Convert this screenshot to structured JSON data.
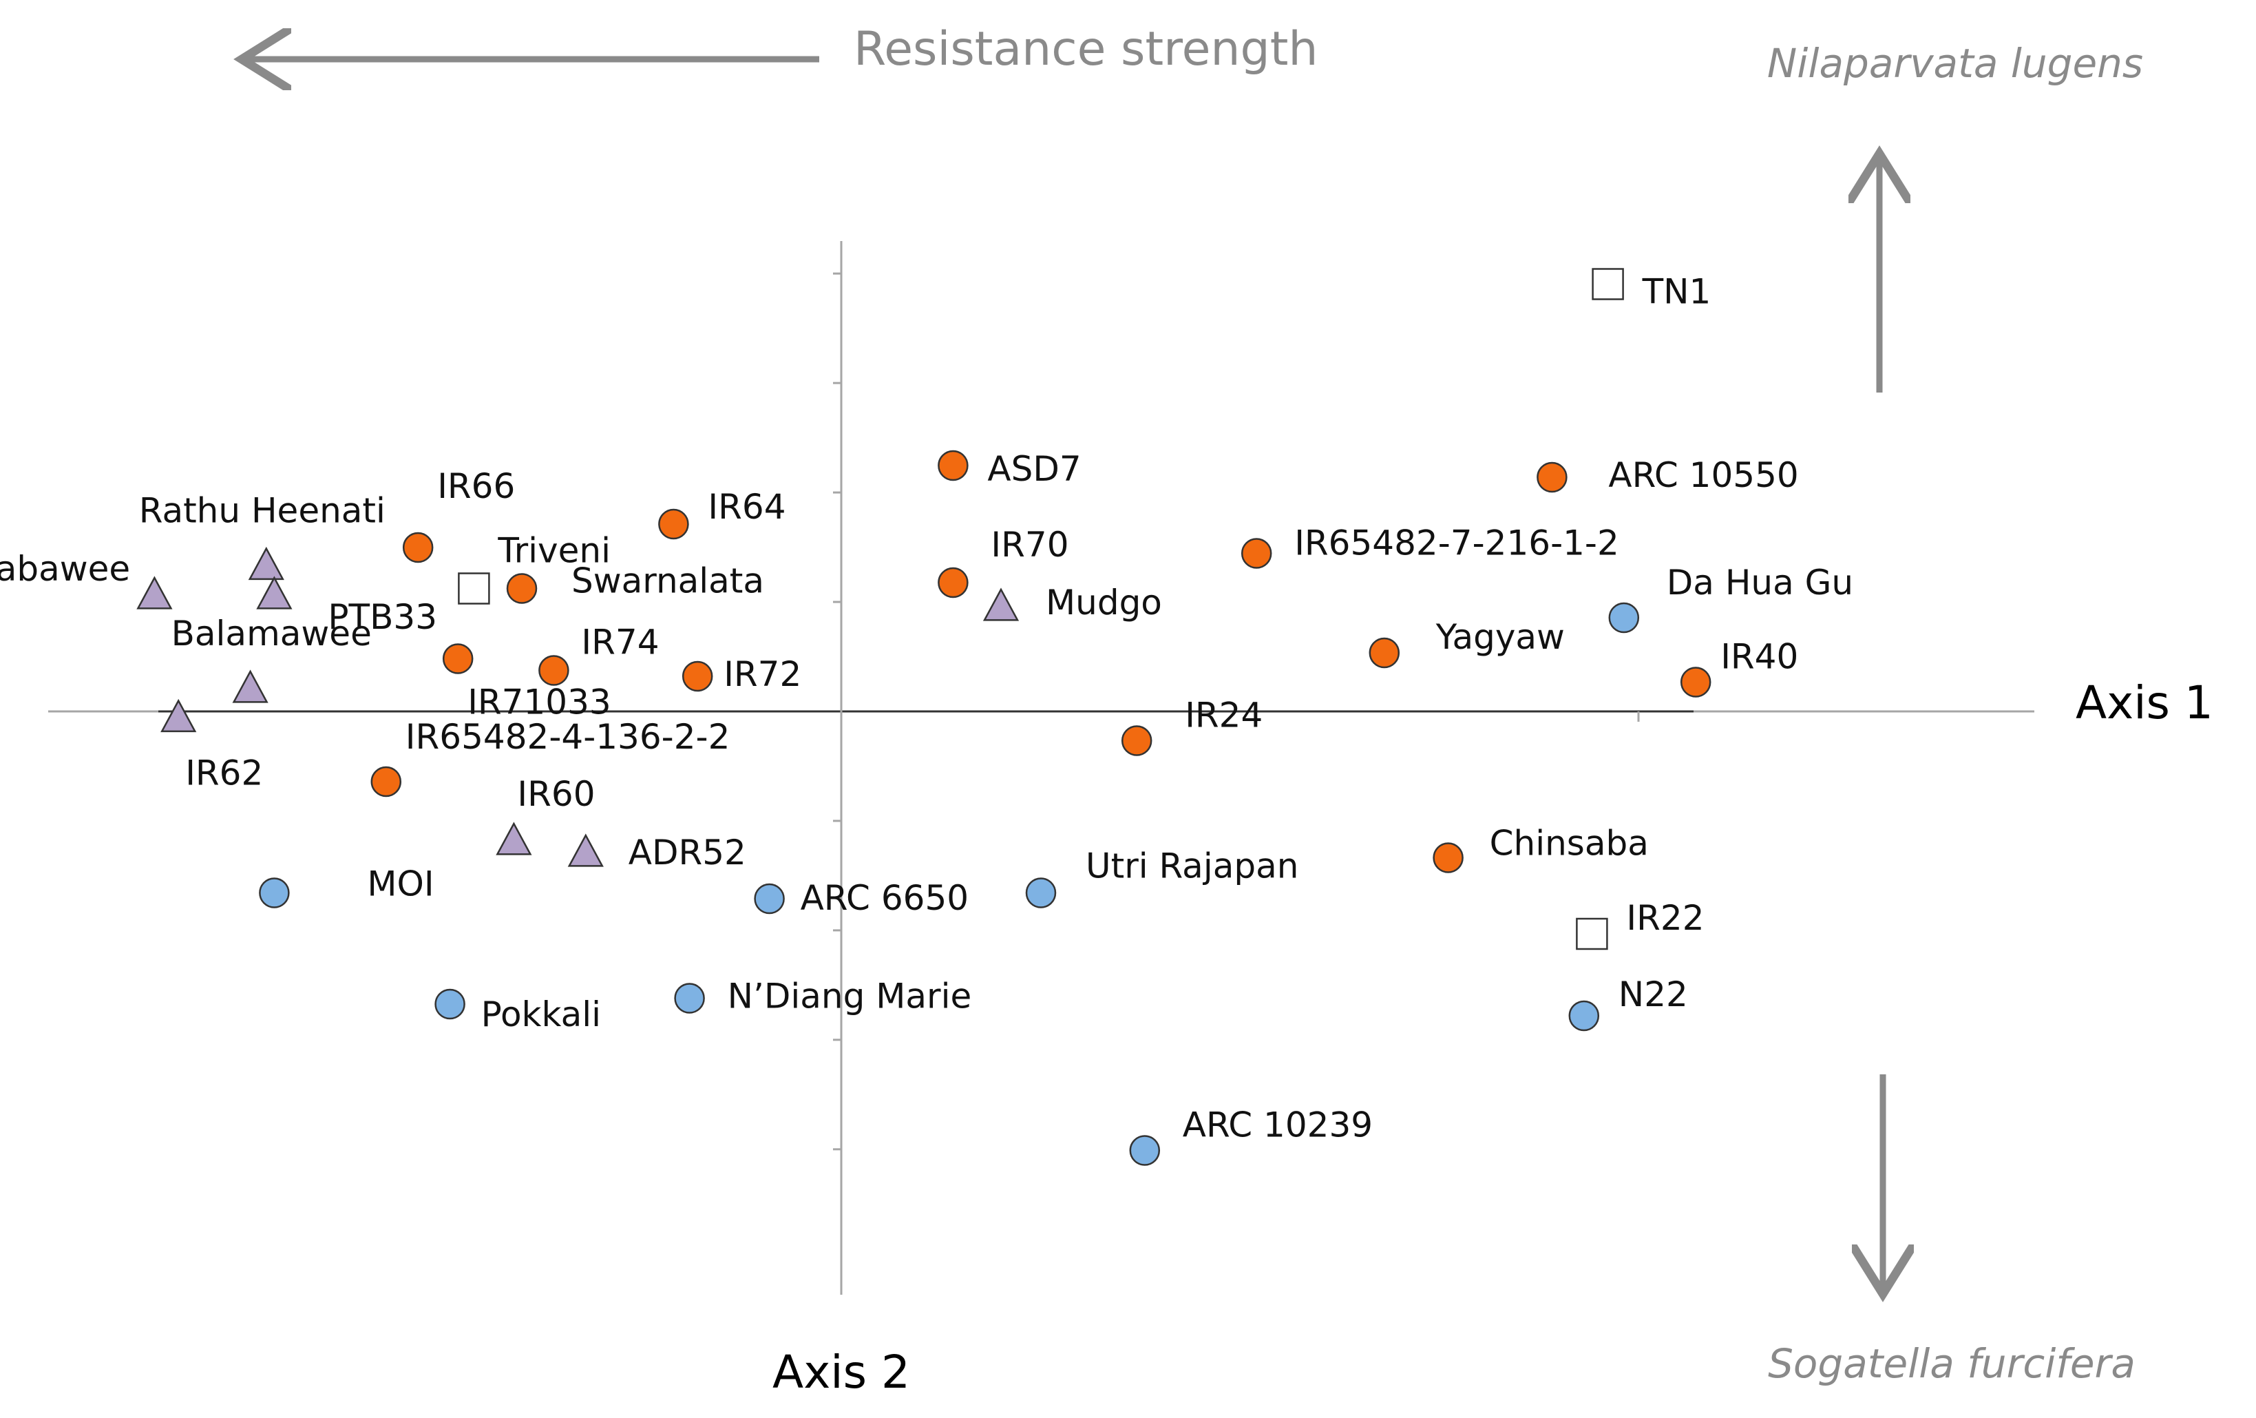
{
  "chart_data": {
    "type": "scatter",
    "title": "",
    "xlabel": "Axis 1",
    "ylabel": "Axis 2",
    "xlim": [
      -10,
      15
    ],
    "ylim": [
      -9,
      8
    ],
    "grid": false,
    "header_label": "Resistance strength",
    "top_species": "Nilaparvata lugens",
    "bottom_species": "Sogatella furcifera",
    "colors": {
      "orange": "#f26a10",
      "blue": "#7eb2e3",
      "purple": "#b3a2c9",
      "open": "#ffffff",
      "outline": "#333333",
      "annotation": "#8a8a8a"
    },
    "points": [
      {
        "label": "TN1",
        "x": 9.6,
        "y": 7.3,
        "group": "open-square"
      },
      {
        "label": "ASD7",
        "x": 1.4,
        "y": 4.2,
        "group": "orange"
      },
      {
        "label": "ARC 10550",
        "x": 8.9,
        "y": 4.0,
        "group": "orange"
      },
      {
        "label": "IR66",
        "x": -5.3,
        "y": 2.8,
        "group": "orange"
      },
      {
        "label": "IR64",
        "x": -2.1,
        "y": 3.2,
        "group": "orange"
      },
      {
        "label": "Triveni",
        "x": -4.6,
        "y": 2.1,
        "group": "open-square"
      },
      {
        "label": "Swarnalata",
        "x": -4.0,
        "y": 2.1,
        "group": "orange"
      },
      {
        "label": "IR70",
        "x": 1.4,
        "y": 2.2,
        "group": "orange"
      },
      {
        "label": "IR65482-7-216-1-2",
        "x": 5.2,
        "y": 2.7,
        "group": "orange"
      },
      {
        "label": "Mudgo",
        "x": 2.0,
        "y": 1.8,
        "group": "purple"
      },
      {
        "label": "Da Hua Gu",
        "x": 9.8,
        "y": 1.6,
        "group": "blue"
      },
      {
        "label": "Rathu Heenati",
        "x": -7.2,
        "y": 2.5,
        "group": "purple"
      },
      {
        "label": "Babawee",
        "x": -8.6,
        "y": 2.0,
        "group": "purple"
      },
      {
        "label": "PTB33",
        "x": -7.1,
        "y": 2.0,
        "group": "purple"
      },
      {
        "label": "IR74",
        "x": -3.6,
        "y": 0.7,
        "group": "orange"
      },
      {
        "label": "Yagyaw",
        "x": 6.8,
        "y": 1.0,
        "group": "orange"
      },
      {
        "label": "IR40",
        "x": 10.7,
        "y": 0.5,
        "group": "orange"
      },
      {
        "label": "Balamawee",
        "x": -7.4,
        "y": 0.4,
        "group": "purple"
      },
      {
        "label": "IR71033",
        "x": -4.8,
        "y": 0.9,
        "group": "orange"
      },
      {
        "label": "IR72",
        "x": -1.8,
        "y": 0.6,
        "group": "orange"
      },
      {
        "label": "IR62",
        "x": -8.3,
        "y": -0.1,
        "group": "purple"
      },
      {
        "label": "IR24",
        "x": 3.7,
        "y": -0.5,
        "group": "orange"
      },
      {
        "label": "IR65482-4-136-2-2",
        "x": -5.7,
        "y": -1.2,
        "group": "orange"
      },
      {
        "label": "IR60",
        "x": -4.1,
        "y": -2.2,
        "group": "purple"
      },
      {
        "label": "ADR52",
        "x": -3.2,
        "y": -2.4,
        "group": "purple"
      },
      {
        "label": "Chinsaba",
        "x": 7.6,
        "y": -2.5,
        "group": "orange"
      },
      {
        "label": "MOI",
        "x": -7.1,
        "y": -3.1,
        "group": "blue"
      },
      {
        "label": "ARC 6650",
        "x": -0.9,
        "y": -3.2,
        "group": "blue"
      },
      {
        "label": "Utri Rajapan",
        "x": 2.5,
        "y": -3.1,
        "group": "blue"
      },
      {
        "label": "IR22",
        "x": 9.4,
        "y": -3.8,
        "group": "open-square"
      },
      {
        "label": "Pokkali",
        "x": -4.9,
        "y": -5.0,
        "group": "blue"
      },
      {
        "label": "N’Diang Marie",
        "x": -1.9,
        "y": -4.9,
        "group": "blue"
      },
      {
        "label": "N22",
        "x": 9.3,
        "y": -5.2,
        "group": "blue"
      },
      {
        "label": "ARC 10239",
        "x": 3.8,
        "y": -7.5,
        "group": "blue"
      }
    ]
  }
}
